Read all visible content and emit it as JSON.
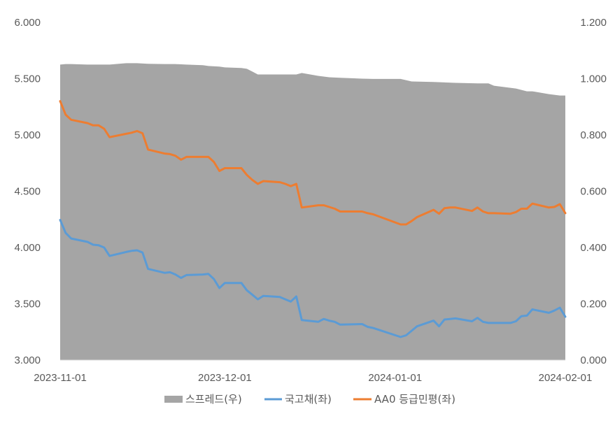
{
  "chart_data": {
    "type": "line",
    "title": "",
    "xlabel": "",
    "ylabel_left": "",
    "ylabel_right": "",
    "x_ticks": [
      "2023-11-01",
      "2023-12-01",
      "2024-01-01",
      "2024-02-01"
    ],
    "x_range": [
      "2023-11-01",
      "2024-02-01"
    ],
    "y_left": {
      "min": 3.0,
      "max": 6.0,
      "step": 0.5,
      "tick_labels": [
        "3.000",
        "3.500",
        "4.000",
        "4.500",
        "5.000",
        "5.500",
        "6.000"
      ]
    },
    "y_right": {
      "min": 0.0,
      "max": 1.2,
      "step": 0.2,
      "tick_labels": [
        "0.000",
        "0.200",
        "0.400",
        "0.600",
        "0.800",
        "1.000",
        "1.200"
      ]
    },
    "legend_position": "bottom",
    "grid": false,
    "series": [
      {
        "name": "스프레드(우)",
        "kind": "area",
        "axis": "right",
        "color": "#a5a5a5",
        "points": [
          [
            "2023-11-01",
            1.05
          ],
          [
            "2023-11-02",
            1.052
          ],
          [
            "2023-11-03",
            1.052
          ],
          [
            "2023-11-06",
            1.05
          ],
          [
            "2023-11-08",
            1.05
          ],
          [
            "2023-11-10",
            1.05
          ],
          [
            "2023-11-13",
            1.055
          ],
          [
            "2023-11-15",
            1.055
          ],
          [
            "2023-11-17",
            1.053
          ],
          [
            "2023-11-20",
            1.052
          ],
          [
            "2023-11-22",
            1.052
          ],
          [
            "2023-11-24",
            1.05
          ],
          [
            "2023-11-27",
            1.048
          ],
          [
            "2023-11-28",
            1.045
          ],
          [
            "2023-11-30",
            1.043
          ],
          [
            "2023-12-01",
            1.04
          ],
          [
            "2023-12-04",
            1.038
          ],
          [
            "2023-12-05",
            1.035
          ],
          [
            "2023-12-06",
            1.025
          ],
          [
            "2023-12-07",
            1.015
          ],
          [
            "2023-12-08",
            1.015
          ],
          [
            "2023-12-12",
            1.015
          ],
          [
            "2023-12-14",
            1.015
          ],
          [
            "2023-12-15",
            1.02
          ],
          [
            "2023-12-18",
            1.01
          ],
          [
            "2023-12-20",
            1.005
          ],
          [
            "2023-12-22",
            1.003
          ],
          [
            "2023-12-26",
            1.0
          ],
          [
            "2023-12-28",
            0.999
          ],
          [
            "2024-01-02",
            0.999
          ],
          [
            "2024-01-04",
            0.99
          ],
          [
            "2024-01-08",
            0.988
          ],
          [
            "2024-01-12",
            0.985
          ],
          [
            "2024-01-16",
            0.983
          ],
          [
            "2024-01-18",
            0.983
          ],
          [
            "2024-01-19",
            0.975
          ],
          [
            "2024-01-23",
            0.965
          ],
          [
            "2024-01-25",
            0.955
          ],
          [
            "2024-01-26",
            0.955
          ],
          [
            "2024-01-29",
            0.945
          ],
          [
            "2024-01-31",
            0.94
          ],
          [
            "2024-02-01",
            0.94
          ]
        ]
      },
      {
        "name": "국고채(좌)",
        "kind": "line",
        "axis": "left",
        "color": "#5b9bd5",
        "points": [
          [
            "2023-11-01",
            4.245
          ],
          [
            "2023-11-02",
            4.13
          ],
          [
            "2023-11-03",
            4.08
          ],
          [
            "2023-11-06",
            4.05
          ],
          [
            "2023-11-07",
            4.025
          ],
          [
            "2023-11-08",
            4.02
          ],
          [
            "2023-11-09",
            4.0
          ],
          [
            "2023-11-10",
            3.925
          ],
          [
            "2023-11-13",
            3.96
          ],
          [
            "2023-11-14",
            3.97
          ],
          [
            "2023-11-15",
            3.975
          ],
          [
            "2023-11-16",
            3.955
          ],
          [
            "2023-11-17",
            3.81
          ],
          [
            "2023-11-20",
            3.775
          ],
          [
            "2023-11-21",
            3.78
          ],
          [
            "2023-11-22",
            3.76
          ],
          [
            "2023-11-23",
            3.73
          ],
          [
            "2023-11-24",
            3.755
          ],
          [
            "2023-11-27",
            3.76
          ],
          [
            "2023-11-28",
            3.765
          ],
          [
            "2023-11-29",
            3.72
          ],
          [
            "2023-11-30",
            3.64
          ],
          [
            "2023-12-01",
            3.685
          ],
          [
            "2023-12-04",
            3.685
          ],
          [
            "2023-12-05",
            3.62
          ],
          [
            "2023-12-06",
            3.58
          ],
          [
            "2023-12-07",
            3.54
          ],
          [
            "2023-12-08",
            3.57
          ],
          [
            "2023-12-11",
            3.56
          ],
          [
            "2023-12-12",
            3.54
          ],
          [
            "2023-12-13",
            3.52
          ],
          [
            "2023-12-14",
            3.565
          ],
          [
            "2023-12-15",
            3.355
          ],
          [
            "2023-12-18",
            3.34
          ],
          [
            "2023-12-19",
            3.365
          ],
          [
            "2023-12-20",
            3.35
          ],
          [
            "2023-12-21",
            3.34
          ],
          [
            "2023-12-22",
            3.315
          ],
          [
            "2023-12-26",
            3.32
          ],
          [
            "2023-12-27",
            3.295
          ],
          [
            "2023-12-28",
            3.285
          ],
          [
            "2024-01-02",
            3.205
          ],
          [
            "2024-01-03",
            3.22
          ],
          [
            "2024-01-04",
            3.26
          ],
          [
            "2024-01-05",
            3.3
          ],
          [
            "2024-01-08",
            3.35
          ],
          [
            "2024-01-09",
            3.3
          ],
          [
            "2024-01-10",
            3.36
          ],
          [
            "2024-01-11",
            3.365
          ],
          [
            "2024-01-12",
            3.37
          ],
          [
            "2024-01-15",
            3.345
          ],
          [
            "2024-01-16",
            3.375
          ],
          [
            "2024-01-17",
            3.34
          ],
          [
            "2024-01-18",
            3.33
          ],
          [
            "2024-01-19",
            3.33
          ],
          [
            "2024-01-22",
            3.33
          ],
          [
            "2024-01-23",
            3.345
          ],
          [
            "2024-01-24",
            3.39
          ],
          [
            "2024-01-25",
            3.395
          ],
          [
            "2024-01-26",
            3.45
          ],
          [
            "2024-01-29",
            3.42
          ],
          [
            "2024-01-30",
            3.44
          ],
          [
            "2024-01-31",
            3.465
          ],
          [
            "2024-02-01",
            3.385
          ]
        ]
      },
      {
        "name": "AA0 등급민평(좌)",
        "kind": "line",
        "axis": "left",
        "color": "#ed7d31",
        "points": [
          [
            "2023-11-01",
            5.3
          ],
          [
            "2023-11-02",
            5.18
          ],
          [
            "2023-11-03",
            5.135
          ],
          [
            "2023-11-06",
            5.105
          ],
          [
            "2023-11-07",
            5.085
          ],
          [
            "2023-11-08",
            5.085
          ],
          [
            "2023-11-09",
            5.055
          ],
          [
            "2023-11-10",
            4.98
          ],
          [
            "2023-11-13",
            5.01
          ],
          [
            "2023-11-14",
            5.02
          ],
          [
            "2023-11-15",
            5.035
          ],
          [
            "2023-11-16",
            5.015
          ],
          [
            "2023-11-17",
            4.87
          ],
          [
            "2023-11-20",
            4.835
          ],
          [
            "2023-11-21",
            4.83
          ],
          [
            "2023-11-22",
            4.815
          ],
          [
            "2023-11-23",
            4.78
          ],
          [
            "2023-11-24",
            4.805
          ],
          [
            "2023-11-27",
            4.805
          ],
          [
            "2023-11-28",
            4.805
          ],
          [
            "2023-11-29",
            4.76
          ],
          [
            "2023-11-30",
            4.68
          ],
          [
            "2023-12-01",
            4.705
          ],
          [
            "2023-12-04",
            4.705
          ],
          [
            "2023-12-05",
            4.645
          ],
          [
            "2023-12-06",
            4.6
          ],
          [
            "2023-12-07",
            4.565
          ],
          [
            "2023-12-08",
            4.59
          ],
          [
            "2023-12-11",
            4.58
          ],
          [
            "2023-12-12",
            4.565
          ],
          [
            "2023-12-13",
            4.545
          ],
          [
            "2023-12-14",
            4.565
          ],
          [
            "2023-12-15",
            4.355
          ],
          [
            "2023-12-18",
            4.375
          ],
          [
            "2023-12-19",
            4.375
          ],
          [
            "2023-12-20",
            4.36
          ],
          [
            "2023-12-21",
            4.345
          ],
          [
            "2023-12-22",
            4.32
          ],
          [
            "2023-12-26",
            4.32
          ],
          [
            "2023-12-27",
            4.305
          ],
          [
            "2023-12-28",
            4.295
          ],
          [
            "2024-01-02",
            4.205
          ],
          [
            "2024-01-03",
            4.205
          ],
          [
            "2024-01-04",
            4.235
          ],
          [
            "2024-01-05",
            4.27
          ],
          [
            "2024-01-08",
            4.335
          ],
          [
            "2024-01-09",
            4.3
          ],
          [
            "2024-01-10",
            4.35
          ],
          [
            "2024-01-11",
            4.355
          ],
          [
            "2024-01-12",
            4.355
          ],
          [
            "2024-01-15",
            4.325
          ],
          [
            "2024-01-16",
            4.355
          ],
          [
            "2024-01-17",
            4.32
          ],
          [
            "2024-01-18",
            4.305
          ],
          [
            "2024-01-19",
            4.305
          ],
          [
            "2024-01-22",
            4.3
          ],
          [
            "2024-01-23",
            4.315
          ],
          [
            "2024-01-24",
            4.345
          ],
          [
            "2024-01-25",
            4.345
          ],
          [
            "2024-01-26",
            4.39
          ],
          [
            "2024-01-29",
            4.355
          ],
          [
            "2024-01-30",
            4.36
          ],
          [
            "2024-01-31",
            4.385
          ],
          [
            "2024-02-01",
            4.305
          ]
        ]
      }
    ]
  }
}
